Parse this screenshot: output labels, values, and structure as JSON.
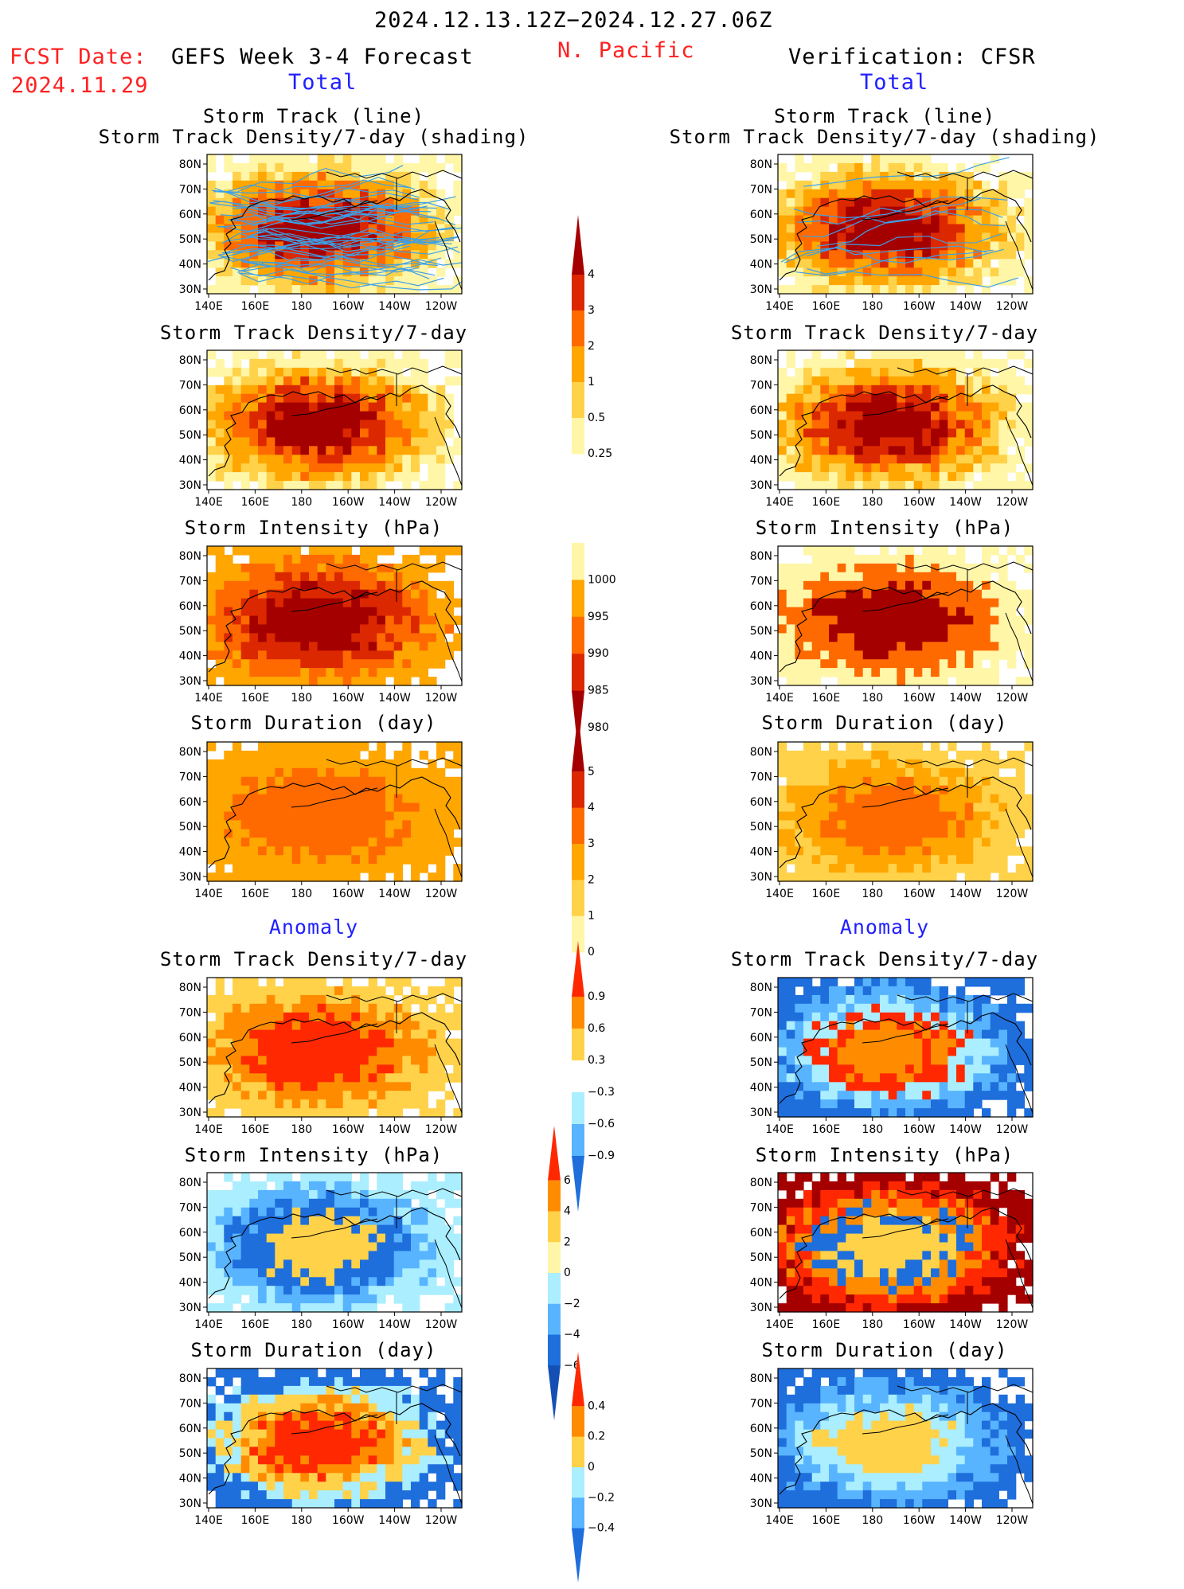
{
  "header": {
    "period": "2024.12.13.12Z−2024.12.27.06Z",
    "fcst_label": "FCST Date:",
    "fcst_date": "2024.11.29",
    "left_title": "GEFS Week 3-4 Forecast",
    "region": "N. Pacific",
    "right_title": "Verification: CFSR",
    "total_label_left": "Total",
    "total_label_right": "Total",
    "anomaly_label_left": "Anomaly",
    "anomaly_label_right": "Anomaly"
  },
  "panel_titles": {
    "track_line": "Storm Track (line)",
    "track_shading": "Storm Track Density/7-day (shading)",
    "density": "Storm Track Density/7-day",
    "intensity": "Storm Intensity (hPa)",
    "duration": "Storm Duration (day)"
  },
  "axes": {
    "lon_ticks": [
      "140E",
      "160E",
      "180",
      "160W",
      "140W",
      "120W"
    ],
    "lat_ticks": [
      "80N",
      "70N",
      "60N",
      "50N",
      "40N",
      "30N"
    ]
  },
  "colorbars": {
    "density_total": {
      "labels": [
        "4",
        "3",
        "2",
        "1",
        "0.5",
        "0.25"
      ],
      "colors": [
        "#a50000",
        "#dc2800",
        "#ff6a00",
        "#ffa600",
        "#ffd24a",
        "#fff6a8"
      ],
      "tip_top": true,
      "tip_bottom": false
    },
    "intensity_total": {
      "labels": [
        "1000",
        "995",
        "990",
        "985",
        "980"
      ],
      "colors": [
        "#fff6a8",
        "#ffa600",
        "#ff6a00",
        "#dc2800",
        "#a50000"
      ],
      "tip_top": false,
      "tip_bottom": true
    },
    "duration_total": {
      "labels": [
        "5",
        "4",
        "3",
        "2",
        "1",
        "0"
      ],
      "colors": [
        "#a50000",
        "#dc2800",
        "#ff6a00",
        "#ffa600",
        "#ffd24a",
        "#fff6a8"
      ],
      "tip_top": true,
      "tip_bottom": false
    },
    "density_anom": {
      "labels": [
        "0.9",
        "0.6",
        "0.3",
        "−0.3",
        "−0.6",
        "−0.9"
      ],
      "colors": [
        "#ff2800",
        "#ff8c00",
        "#ffd24a",
        "#ffffff",
        "#aaeeff",
        "#58b4ff",
        "#1e6edc"
      ],
      "tip_top": true,
      "tip_bottom": true
    },
    "intensity_anom": {
      "labels": [
        "6",
        "4",
        "2",
        "0",
        "−2",
        "−4",
        "−6"
      ],
      "colors": [
        "#ff2800",
        "#ff8c00",
        "#ffd24a",
        "#fff6a8",
        "#aaeeff",
        "#58b4ff",
        "#1e6edc",
        "#1450b4"
      ],
      "tip_top": true,
      "tip_bottom": true
    },
    "duration_anom": {
      "labels": [
        "0.4",
        "0.2",
        "0",
        "−0.2",
        "−0.4"
      ],
      "colors": [
        "#ff2800",
        "#ff8c00",
        "#ffd24a",
        "#aaeeff",
        "#58b4ff",
        "#1e6edc"
      ],
      "tip_top": true,
      "tip_bottom": true
    }
  },
  "chart_data": [
    {
      "type": "heatmap",
      "id": "gefs-track",
      "title": "Storm Track (line) / Storm Track Density/7-day (shading)",
      "core": "#a50000",
      "levels": [
        "#fff6a8",
        "#ffd24a",
        "#ffa600",
        "#ff6a00",
        "#dc2800",
        "#a50000"
      ],
      "tracks": true,
      "track_color": "#3ca0e6"
    },
    {
      "type": "heatmap",
      "id": "cfsr-track",
      "title": "Storm Track (line) / Storm Track Density/7-day (shading)",
      "core": "#a50000",
      "levels": [
        "#fff6a8",
        "#ffd24a",
        "#ffa600",
        "#ff6a00",
        "#dc2800",
        "#a50000"
      ],
      "tracks": true,
      "track_color": "#3ca0e6"
    },
    {
      "type": "heatmap",
      "id": "gefs-density",
      "title": "Storm Track Density/7-day",
      "core": "#a50000",
      "levels": [
        "#fff6a8",
        "#ffd24a",
        "#ffa600",
        "#ff6a00",
        "#dc2800",
        "#a50000"
      ]
    },
    {
      "type": "heatmap",
      "id": "cfsr-density",
      "title": "Storm Track Density/7-day",
      "core": "#a50000",
      "levels": [
        "#fff6a8",
        "#ffd24a",
        "#ffa600",
        "#ff6a00",
        "#dc2800",
        "#a50000"
      ]
    },
    {
      "type": "heatmap",
      "id": "gefs-intensity",
      "title": "Storm Intensity (hPa)",
      "core": "#a50000",
      "levels": [
        "#ffa600",
        "#ff6a00",
        "#dc2800",
        "#a50000"
      ]
    },
    {
      "type": "heatmap",
      "id": "cfsr-intensity",
      "title": "Storm Intensity (hPa)",
      "core": "#a50000",
      "levels": [
        "#fff6a8",
        "#ff6a00",
        "#a50000"
      ]
    },
    {
      "type": "heatmap",
      "id": "gefs-duration",
      "title": "Storm Duration (day)",
      "core": "#ff6a00",
      "levels": [
        "#ffa600",
        "#ff6a00"
      ]
    },
    {
      "type": "heatmap",
      "id": "cfsr-duration",
      "title": "Storm Duration (day)",
      "core": "#ff6a00",
      "levels": [
        "#ffd24a",
        "#ffa600",
        "#ff6a00"
      ]
    },
    {
      "type": "heatmap",
      "id": "gefs-density-anom",
      "title": "Storm Track Density/7-day",
      "core": "#ff2800",
      "levels": [
        "#ffd24a",
        "#ff8c00",
        "#ff2800"
      ]
    },
    {
      "type": "heatmap",
      "id": "cfsr-density-anom",
      "title": "Storm Track Density/7-day",
      "core": "#ff2800",
      "levels": [
        "#1e6edc",
        "#58b4ff",
        "#aaeeff",
        "#ff2800",
        "#ff8c00"
      ]
    },
    {
      "type": "heatmap",
      "id": "gefs-intensity-anom",
      "title": "Storm Intensity (hPa)",
      "core": "#1e6edc",
      "levels": [
        "#aaeeff",
        "#58b4ff",
        "#1e6edc",
        "#ffd24a"
      ]
    },
    {
      "type": "heatmap",
      "id": "cfsr-intensity-anom",
      "title": "Storm Intensity (hPa)",
      "core": "#1e6edc",
      "levels": [
        "#a50000",
        "#ff2800",
        "#ff8c00",
        "#1e6edc",
        "#ffd24a"
      ]
    },
    {
      "type": "heatmap",
      "id": "gefs-duration-anom",
      "title": "Storm Duration (day)",
      "core": "#ff2800",
      "levels": [
        "#1e6edc",
        "#aaeeff",
        "#ffd24a",
        "#ff8c00",
        "#ff2800"
      ]
    },
    {
      "type": "heatmap",
      "id": "cfsr-duration-anom",
      "title": "Storm Duration (day)",
      "core": "#1e6edc",
      "levels": [
        "#1e6edc",
        "#58b4ff",
        "#aaeeff",
        "#ffd24a"
      ]
    }
  ]
}
